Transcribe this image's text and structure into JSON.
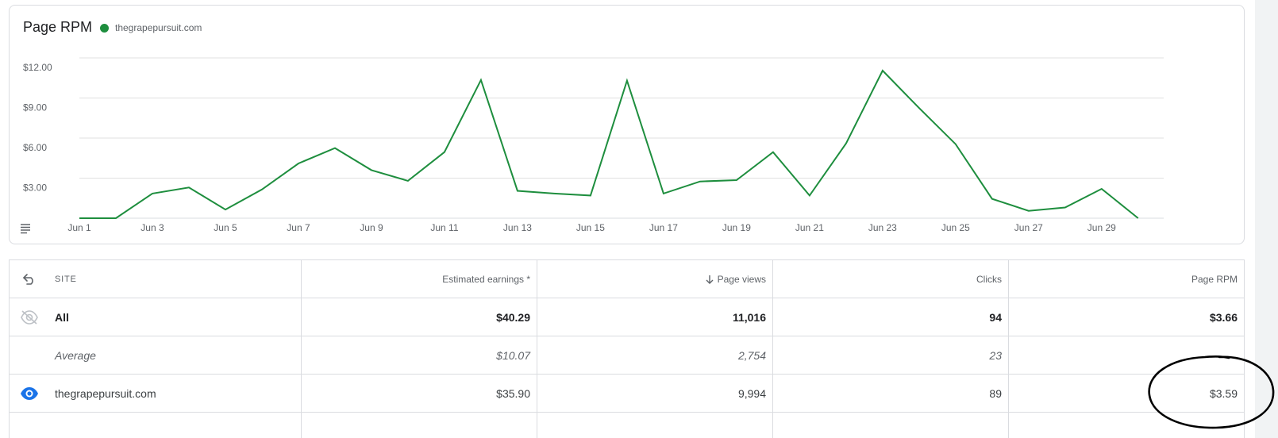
{
  "chart": {
    "title": "Page RPM",
    "legend_label": "thegrapepursuit.com",
    "line_color": "#1e8e3e"
  },
  "chart_data": {
    "type": "line",
    "title": "Page RPM",
    "series": [
      {
        "name": "thegrapepursuit.com",
        "x": [
          "Jun 1",
          "Jun 2",
          "Jun 3",
          "Jun 4",
          "Jun 5",
          "Jun 6",
          "Jun 7",
          "Jun 8",
          "Jun 9",
          "Jun 10",
          "Jun 11",
          "Jun 12",
          "Jun 13",
          "Jun 14",
          "Jun 15",
          "Jun 16",
          "Jun 17",
          "Jun 18",
          "Jun 19",
          "Jun 20",
          "Jun 21",
          "Jun 22",
          "Jun 23",
          "Jun 24",
          "Jun 25",
          "Jun 26",
          "Jun 27",
          "Jun 28",
          "Jun 29",
          "Jun 30"
        ],
        "values": [
          0.0,
          0.0,
          1.85,
          2.3,
          0.65,
          2.15,
          4.1,
          5.25,
          3.6,
          2.8,
          4.95,
          10.35,
          2.05,
          1.85,
          1.7,
          10.3,
          1.85,
          2.75,
          2.85,
          4.95,
          1.7,
          5.6,
          11.05,
          8.25,
          5.55,
          1.45,
          0.55,
          0.8,
          2.2,
          0.0
        ]
      }
    ],
    "x_tick_labels": [
      "Jun 1",
      "Jun 3",
      "Jun 5",
      "Jun 7",
      "Jun 9",
      "Jun 11",
      "Jun 13",
      "Jun 15",
      "Jun 17",
      "Jun 19",
      "Jun 21",
      "Jun 23",
      "Jun 25",
      "Jun 27",
      "Jun 29"
    ],
    "y_tick_labels": [
      "$3.00",
      "$6.00",
      "$9.00",
      "$12.00"
    ],
    "y_ticks": [
      3,
      6,
      9,
      12
    ],
    "ylim": [
      0,
      12
    ],
    "grid": true,
    "legend_position": "top-left"
  },
  "table": {
    "headers": {
      "site": "SITE",
      "earnings": "Estimated earnings *",
      "page_views": "Page views",
      "clicks": "Clicks",
      "rpm": "Page RPM"
    },
    "rows": [
      {
        "label": "All",
        "earnings": "$40.29",
        "page_views": "11,016",
        "clicks": "94",
        "rpm": "$3.66",
        "style": "total",
        "icon": "eye-off-icon"
      },
      {
        "label": "Average",
        "earnings": "$10.07",
        "page_views": "2,754",
        "clicks": "23",
        "rpm": "",
        "style": "average",
        "icon": ""
      },
      {
        "label": "thegrapepursuit.com",
        "earnings": "$35.90",
        "page_views": "9,994",
        "clicks": "89",
        "rpm": "$3.59",
        "style": "normal",
        "icon": "eye-icon"
      }
    ]
  }
}
